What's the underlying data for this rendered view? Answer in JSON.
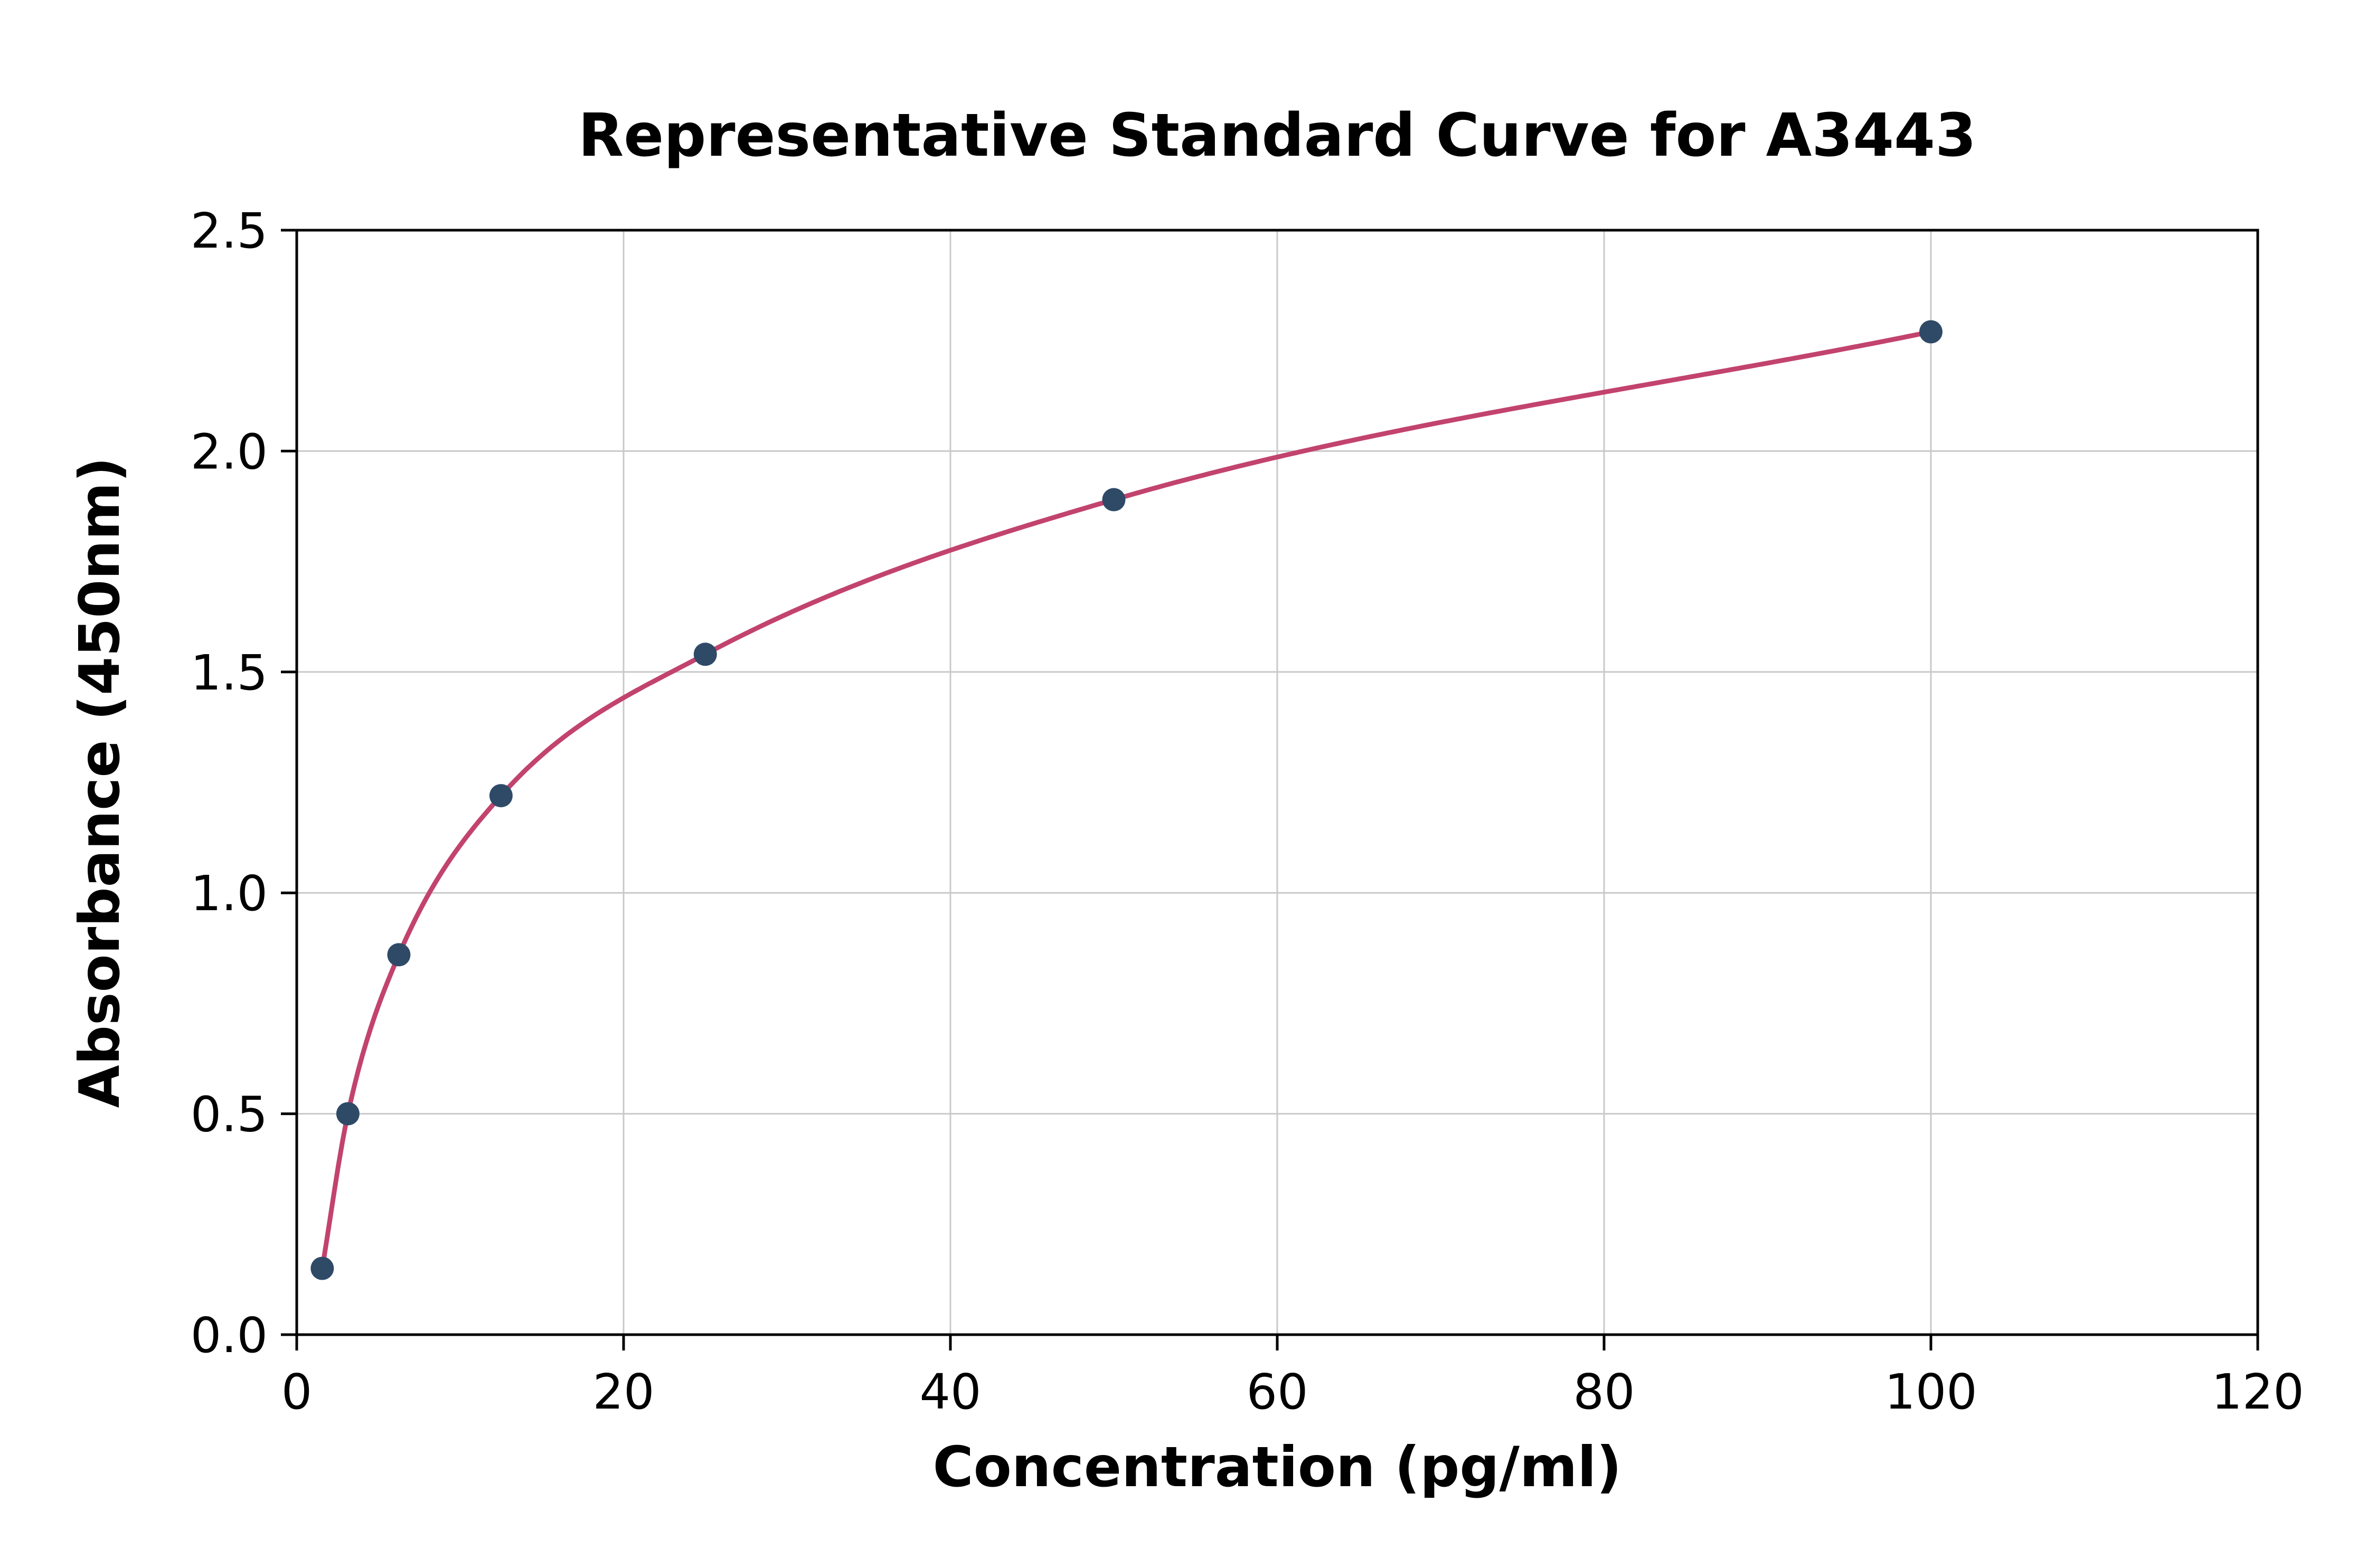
{
  "chart_data": {
    "type": "scatter",
    "title": "Representative Standard Curve for A3443",
    "xlabel": "Concentration (pg/ml)",
    "ylabel": "Absorbance (450nm)",
    "xlim": [
      0,
      120
    ],
    "ylim": [
      0,
      2.5
    ],
    "x_ticks": [
      "0",
      "20",
      "40",
      "60",
      "80",
      "100",
      "120"
    ],
    "y_ticks": [
      "0.0",
      "0.5",
      "1.0",
      "1.5",
      "2.0",
      "2.5"
    ],
    "grid": true,
    "legend": "none",
    "points": {
      "x": [
        1.56,
        3.13,
        6.25,
        12.5,
        25,
        50,
        100
      ],
      "y": [
        0.15,
        0.5,
        0.86,
        1.22,
        1.54,
        1.89,
        2.27
      ]
    },
    "curve": "smooth monotone fit through data points",
    "colors": {
      "curve": "#c2436e",
      "points": "#2e4a67",
      "grid": "#c9c9c9",
      "axis": "#000000",
      "background": "#ffffff"
    }
  }
}
